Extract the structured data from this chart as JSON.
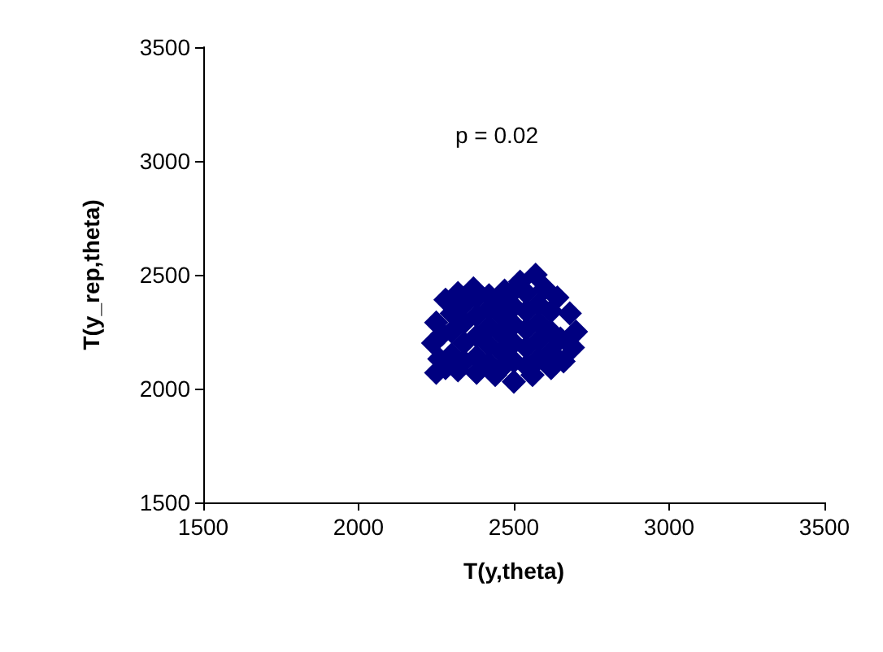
{
  "chart_data": {
    "type": "scatter",
    "xlabel": "T(y,theta)",
    "ylabel": "T(y_rep,theta)",
    "annotations": [
      "p = 0.02"
    ],
    "x": [
      2250,
      2240,
      2250,
      2280,
      2320,
      2370,
      2420,
      2470,
      2520,
      2570,
      2600,
      2640,
      2680,
      2700,
      2690,
      2660,
      2620,
      2560,
      2500,
      2440,
      2380,
      2320,
      2280,
      2300,
      2300,
      2300,
      2340,
      2340,
      2340,
      2340,
      2380,
      2380,
      2380,
      2380,
      2420,
      2420,
      2420,
      2420,
      2460,
      2460,
      2460,
      2460,
      2460,
      2500,
      2500,
      2500,
      2500,
      2500,
      2540,
      2540,
      2540,
      2540,
      2540,
      2580,
      2580,
      2580,
      2580,
      2620,
      2620,
      2620,
      2650,
      2260,
      2270
    ],
    "values": [
      2070,
      2200,
      2290,
      2390,
      2420,
      2440,
      2410,
      2430,
      2470,
      2500,
      2440,
      2400,
      2330,
      2250,
      2180,
      2120,
      2090,
      2060,
      2030,
      2060,
      2070,
      2080,
      2090,
      2150,
      2250,
      2330,
      2120,
      2200,
      2290,
      2370,
      2140,
      2230,
      2320,
      2400,
      2110,
      2190,
      2270,
      2350,
      2090,
      2160,
      2240,
      2320,
      2390,
      2120,
      2200,
      2280,
      2360,
      2430,
      2100,
      2180,
      2260,
      2340,
      2420,
      2130,
      2210,
      2290,
      2370,
      2160,
      2250,
      2340,
      2220,
      2130,
      2240
    ],
    "color": "#000080",
    "marker": "diamond",
    "xlim": [
      1500,
      3500
    ],
    "xticks": [
      1500,
      2000,
      2500,
      3000,
      3500
    ],
    "ylim": [
      1500,
      3500
    ],
    "yticks": [
      1500,
      2000,
      2500,
      3000,
      3500
    ],
    "grid": false
  }
}
